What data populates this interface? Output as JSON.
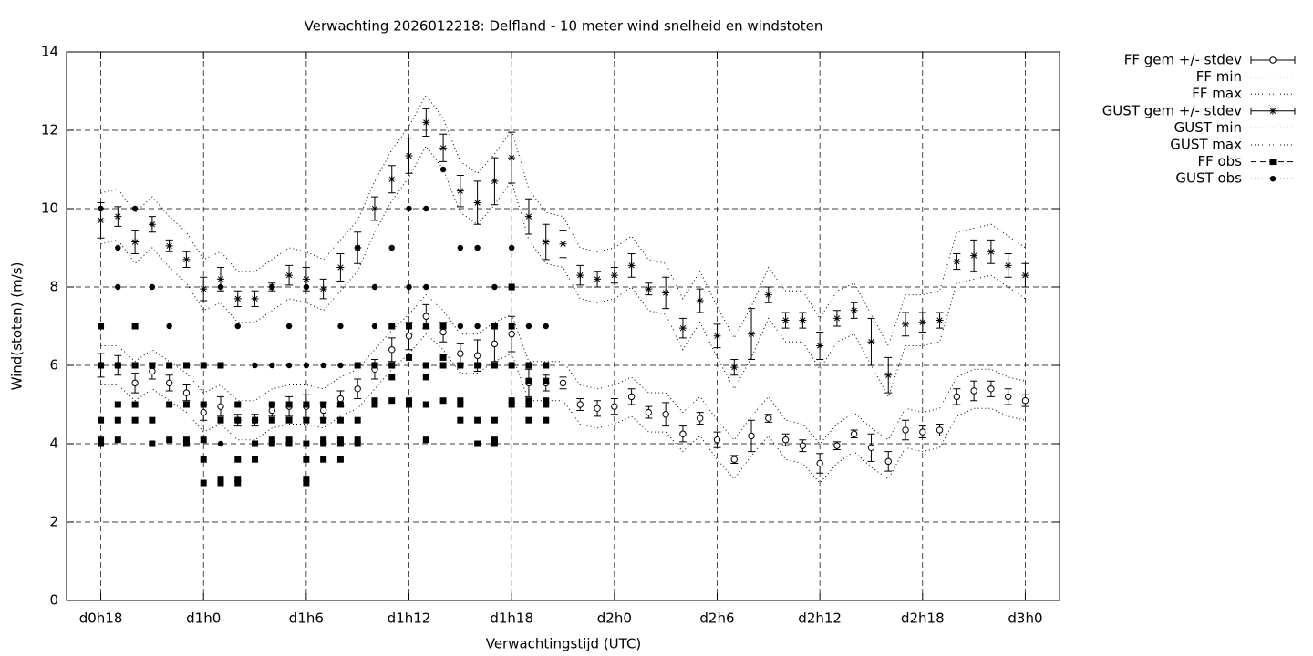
{
  "chart_data": {
    "type": "errorbar",
    "title": "Verwachting 2026012218: Delfland - 10 meter wind snelheid en windstoten",
    "x_label": "Verwachtingstijd (UTC)",
    "y_label": "Wind(stoten) (m/s)",
    "xlim": [
      16,
      74
    ],
    "ylim": [
      0,
      14
    ],
    "xticks": [
      {
        "value": 18,
        "label": "d0h18"
      },
      {
        "value": 24,
        "label": "d1h0"
      },
      {
        "value": 30,
        "label": "d1h6"
      },
      {
        "value": 36,
        "label": "d1h12"
      },
      {
        "value": 42,
        "label": "d1h18"
      },
      {
        "value": 48,
        "label": "d2h0"
      },
      {
        "value": 54,
        "label": "d2h6"
      },
      {
        "value": 60,
        "label": "d2h12"
      },
      {
        "value": 66,
        "label": "d2h18"
      },
      {
        "value": 72,
        "label": "d3h0"
      }
    ],
    "yticks": [
      0,
      2,
      4,
      6,
      8,
      10,
      12,
      14
    ],
    "grid": true,
    "legend": "outside-right-top",
    "x": [
      18,
      19,
      20,
      21,
      22,
      23,
      24,
      25,
      26,
      27,
      28,
      29,
      30,
      31,
      32,
      33,
      34,
      35,
      36,
      37,
      38,
      39,
      40,
      41,
      42,
      43,
      44,
      45,
      46,
      47,
      48,
      49,
      50,
      51,
      52,
      53,
      54,
      55,
      56,
      57,
      58,
      59,
      60,
      61,
      62,
      63,
      64,
      65,
      66,
      67,
      68,
      69,
      70,
      71,
      72
    ],
    "series": [
      {
        "name": "FF gem +/- stdev",
        "color": "#000000",
        "marker": "open-circle",
        "line": "none",
        "values": [
          6.0,
          6.0,
          5.55,
          5.85,
          5.55,
          5.3,
          4.8,
          4.95,
          4.6,
          4.6,
          4.85,
          4.95,
          4.95,
          4.85,
          5.15,
          5.4,
          5.9,
          6.4,
          6.75,
          7.25,
          6.85,
          6.3,
          6.25,
          6.55,
          6.8,
          5.55,
          5.55,
          5.55,
          5.0,
          4.9,
          4.95,
          5.2,
          4.8,
          4.75,
          4.25,
          4.65,
          4.1,
          3.6,
          4.2,
          4.65,
          4.1,
          3.95,
          3.5,
          3.95,
          4.25,
          3.9,
          3.55,
          4.35,
          4.3,
          4.35,
          5.2,
          5.35,
          5.4,
          5.2,
          5.1
        ],
        "errors": [
          0.3,
          0.25,
          0.25,
          0.2,
          0.2,
          0.2,
          0.2,
          0.25,
          0.15,
          0.15,
          0.15,
          0.25,
          0.3,
          0.2,
          0.2,
          0.25,
          0.25,
          0.3,
          0.35,
          0.3,
          0.25,
          0.25,
          0.4,
          0.45,
          0.45,
          0.35,
          0.2,
          0.15,
          0.15,
          0.2,
          0.2,
          0.2,
          0.15,
          0.3,
          0.2,
          0.15,
          0.2,
          0.1,
          0.4,
          0.1,
          0.15,
          0.15,
          0.25,
          0.1,
          0.1,
          0.35,
          0.25,
          0.25,
          0.15,
          0.15,
          0.2,
          0.25,
          0.2,
          0.2,
          0.15
        ]
      },
      {
        "name": "FF min",
        "color": "#000000",
        "marker": "none",
        "line": "dotted",
        "values": [
          5.5,
          5.5,
          5.1,
          5.4,
          5.1,
          4.8,
          4.3,
          4.5,
          4.1,
          4.1,
          4.4,
          4.5,
          4.5,
          4.4,
          4.7,
          4.9,
          5.4,
          5.9,
          6.3,
          6.8,
          6.4,
          5.8,
          5.8,
          6.1,
          6.3,
          5.1,
          5.1,
          5.1,
          4.5,
          4.4,
          4.5,
          4.7,
          4.3,
          4.3,
          3.8,
          4.2,
          3.6,
          3.1,
          3.7,
          4.2,
          3.6,
          3.5,
          3.0,
          3.5,
          3.8,
          3.4,
          3.1,
          3.9,
          3.8,
          3.9,
          4.7,
          4.9,
          4.9,
          4.7,
          4.6
        ]
      },
      {
        "name": "FF max",
        "color": "#000000",
        "marker": "none",
        "line": "dotted",
        "values": [
          6.5,
          6.5,
          6.1,
          6.4,
          6.1,
          5.8,
          5.3,
          5.5,
          5.1,
          5.1,
          5.4,
          5.5,
          5.5,
          5.4,
          5.7,
          5.9,
          6.4,
          6.9,
          7.3,
          7.8,
          7.4,
          6.8,
          6.8,
          7.1,
          7.3,
          6.1,
          6.1,
          6.1,
          5.5,
          5.4,
          5.5,
          5.7,
          5.3,
          5.3,
          4.8,
          5.2,
          4.6,
          4.1,
          4.7,
          5.2,
          4.6,
          4.5,
          4.0,
          4.5,
          4.8,
          4.4,
          4.1,
          4.9,
          4.8,
          4.9,
          5.7,
          5.9,
          5.9,
          5.7,
          5.6
        ]
      },
      {
        "name": "GUST gem +/- stdev",
        "color": "#000000",
        "marker": "star",
        "line": "none",
        "values": [
          9.7,
          9.8,
          9.15,
          9.6,
          9.05,
          8.7,
          7.95,
          8.2,
          7.7,
          7.7,
          8.0,
          8.3,
          8.2,
          7.95,
          8.5,
          9.0,
          10.0,
          10.75,
          11.35,
          12.2,
          11.55,
          10.45,
          10.15,
          10.7,
          11.3,
          9.8,
          9.15,
          9.1,
          8.3,
          8.2,
          8.3,
          8.55,
          7.95,
          7.85,
          6.95,
          7.65,
          6.75,
          5.95,
          6.8,
          7.8,
          7.15,
          7.15,
          6.5,
          7.2,
          7.4,
          6.6,
          5.75,
          7.05,
          7.1,
          7.15,
          8.65,
          8.8,
          8.9,
          8.55,
          8.3
        ],
        "errors": [
          0.45,
          0.25,
          0.3,
          0.2,
          0.15,
          0.2,
          0.3,
          0.3,
          0.2,
          0.2,
          0.1,
          0.25,
          0.3,
          0.25,
          0.35,
          0.4,
          0.3,
          0.35,
          0.45,
          0.35,
          0.35,
          0.4,
          0.55,
          0.6,
          0.65,
          0.45,
          0.45,
          0.35,
          0.25,
          0.2,
          0.2,
          0.3,
          0.15,
          0.4,
          0.25,
          0.3,
          0.3,
          0.2,
          0.65,
          0.2,
          0.2,
          0.2,
          0.35,
          0.2,
          0.2,
          0.6,
          0.45,
          0.3,
          0.25,
          0.2,
          0.2,
          0.4,
          0.3,
          0.3,
          0.3
        ]
      },
      {
        "name": "GUST min",
        "color": "#000000",
        "marker": "none",
        "line": "dotted",
        "values": [
          9.1,
          9.2,
          8.6,
          9.0,
          8.5,
          8.1,
          7.4,
          7.6,
          7.1,
          7.1,
          7.4,
          7.7,
          7.6,
          7.4,
          7.9,
          8.4,
          9.4,
          10.2,
          10.8,
          11.6,
          11.0,
          9.9,
          9.6,
          10.1,
          10.7,
          9.2,
          8.6,
          8.5,
          7.7,
          7.6,
          7.7,
          8.0,
          7.4,
          7.3,
          6.4,
          7.1,
          6.2,
          5.4,
          6.2,
          7.2,
          6.6,
          6.6,
          5.9,
          6.6,
          6.8,
          6.0,
          5.2,
          6.5,
          6.5,
          6.6,
          8.1,
          8.2,
          8.3,
          8.0,
          7.7
        ]
      },
      {
        "name": "GUST max",
        "color": "#000000",
        "marker": "none",
        "line": "dotted",
        "values": [
          10.4,
          10.5,
          9.9,
          10.3,
          9.8,
          9.4,
          8.7,
          8.9,
          8.4,
          8.4,
          8.7,
          9.0,
          8.9,
          8.7,
          9.2,
          9.7,
          10.7,
          11.5,
          12.1,
          12.9,
          12.3,
          11.2,
          10.9,
          11.4,
          12.0,
          10.5,
          9.9,
          9.8,
          9.0,
          8.9,
          9.0,
          9.3,
          8.7,
          8.6,
          7.7,
          8.4,
          7.5,
          6.7,
          7.5,
          8.5,
          7.9,
          7.9,
          7.2,
          7.9,
          8.1,
          7.3,
          6.5,
          7.8,
          7.8,
          7.9,
          9.4,
          9.5,
          9.6,
          9.3,
          9.0
        ]
      },
      {
        "name": "FF obs",
        "color": "#000000",
        "marker": "square",
        "line": "dashed",
        "x": [
          18,
          18,
          18,
          18,
          18,
          19,
          19,
          19,
          19,
          20,
          20,
          20,
          20,
          21,
          21,
          21,
          22,
          22,
          22,
          23,
          23,
          23,
          23,
          24,
          24,
          24,
          24,
          24,
          25,
          25,
          25,
          25,
          26,
          26,
          26,
          26,
          26,
          27,
          27,
          27,
          28,
          28,
          28,
          28,
          29,
          29,
          29,
          29,
          30,
          30,
          30,
          30,
          30,
          30,
          31,
          31,
          31,
          31,
          31,
          32,
          32,
          32,
          32,
          32,
          33,
          33,
          33,
          33,
          34,
          34,
          34,
          35,
          35,
          35,
          35,
          36,
          36,
          36,
          36,
          37,
          37,
          37,
          37,
          37,
          38,
          38,
          38,
          38,
          39,
          39,
          39,
          39,
          40,
          40,
          40,
          41,
          41,
          41,
          41,
          41,
          42,
          42,
          42,
          42,
          42,
          43,
          43,
          43,
          43,
          43,
          44,
          44,
          44,
          44,
          44
        ],
        "values": [
          7,
          6,
          4.6,
          4.1,
          4.0,
          6,
          5,
          4.6,
          4.1,
          7,
          6,
          5,
          4.6,
          6,
          4.6,
          4.0,
          6,
          5,
          4.1,
          6,
          5,
          4.1,
          4.0,
          6,
          5,
          4.1,
          3.6,
          3.0,
          6,
          4.6,
          3.1,
          3.0,
          5,
          4.6,
          3.6,
          3.0,
          3.1,
          4.6,
          4.0,
          3.6,
          5,
          4.6,
          4.1,
          4.0,
          5,
          4.6,
          4.1,
          4.0,
          5,
          4.6,
          4.0,
          3.6,
          3.0,
          3.1,
          5,
          4.6,
          4.1,
          4.0,
          3.6,
          5,
          4.6,
          4.0,
          4.1,
          3.6,
          6,
          4.6,
          4.1,
          4.0,
          6,
          5.1,
          5.0,
          7,
          6,
          5.7,
          5.1,
          7,
          6.2,
          5.1,
          5.0,
          7,
          6,
          5.7,
          5.0,
          4.1,
          7,
          6.2,
          6,
          5.1,
          6,
          5.1,
          5.0,
          4.6,
          6,
          4.6,
          4.0,
          7,
          6,
          4.6,
          4.1,
          4.0,
          8,
          7,
          6,
          5.1,
          5.0,
          6,
          5.6,
          5.1,
          5.0,
          4.6,
          6,
          5.6,
          5.1,
          5.0,
          4.6
        ]
      },
      {
        "name": "GUST obs",
        "color": "#000000",
        "marker": "dot",
        "line": "dotted",
        "x": [
          18,
          18,
          19,
          19,
          19,
          20,
          20,
          21,
          21,
          22,
          22,
          23,
          24,
          24,
          25,
          25,
          25,
          26,
          27,
          28,
          28,
          29,
          29,
          30,
          30,
          30,
          31,
          32,
          32,
          33,
          33,
          34,
          34,
          35,
          35,
          36,
          36,
          36,
          37,
          37,
          37,
          38,
          38,
          39,
          39,
          40,
          40,
          41,
          41,
          41,
          42,
          42,
          43,
          44
        ],
        "values": [
          10,
          6,
          9,
          8,
          6,
          10,
          6,
          8,
          6,
          7,
          6,
          6,
          6,
          5,
          8,
          6,
          4,
          7,
          6,
          8,
          6,
          7,
          6,
          8,
          6,
          5,
          6,
          7,
          6,
          9,
          6,
          8,
          7,
          9,
          7,
          10,
          8,
          7,
          10,
          8,
          7,
          11,
          7,
          9,
          7,
          9,
          7,
          8,
          7,
          6,
          9,
          7,
          7,
          7
        ]
      }
    ]
  }
}
